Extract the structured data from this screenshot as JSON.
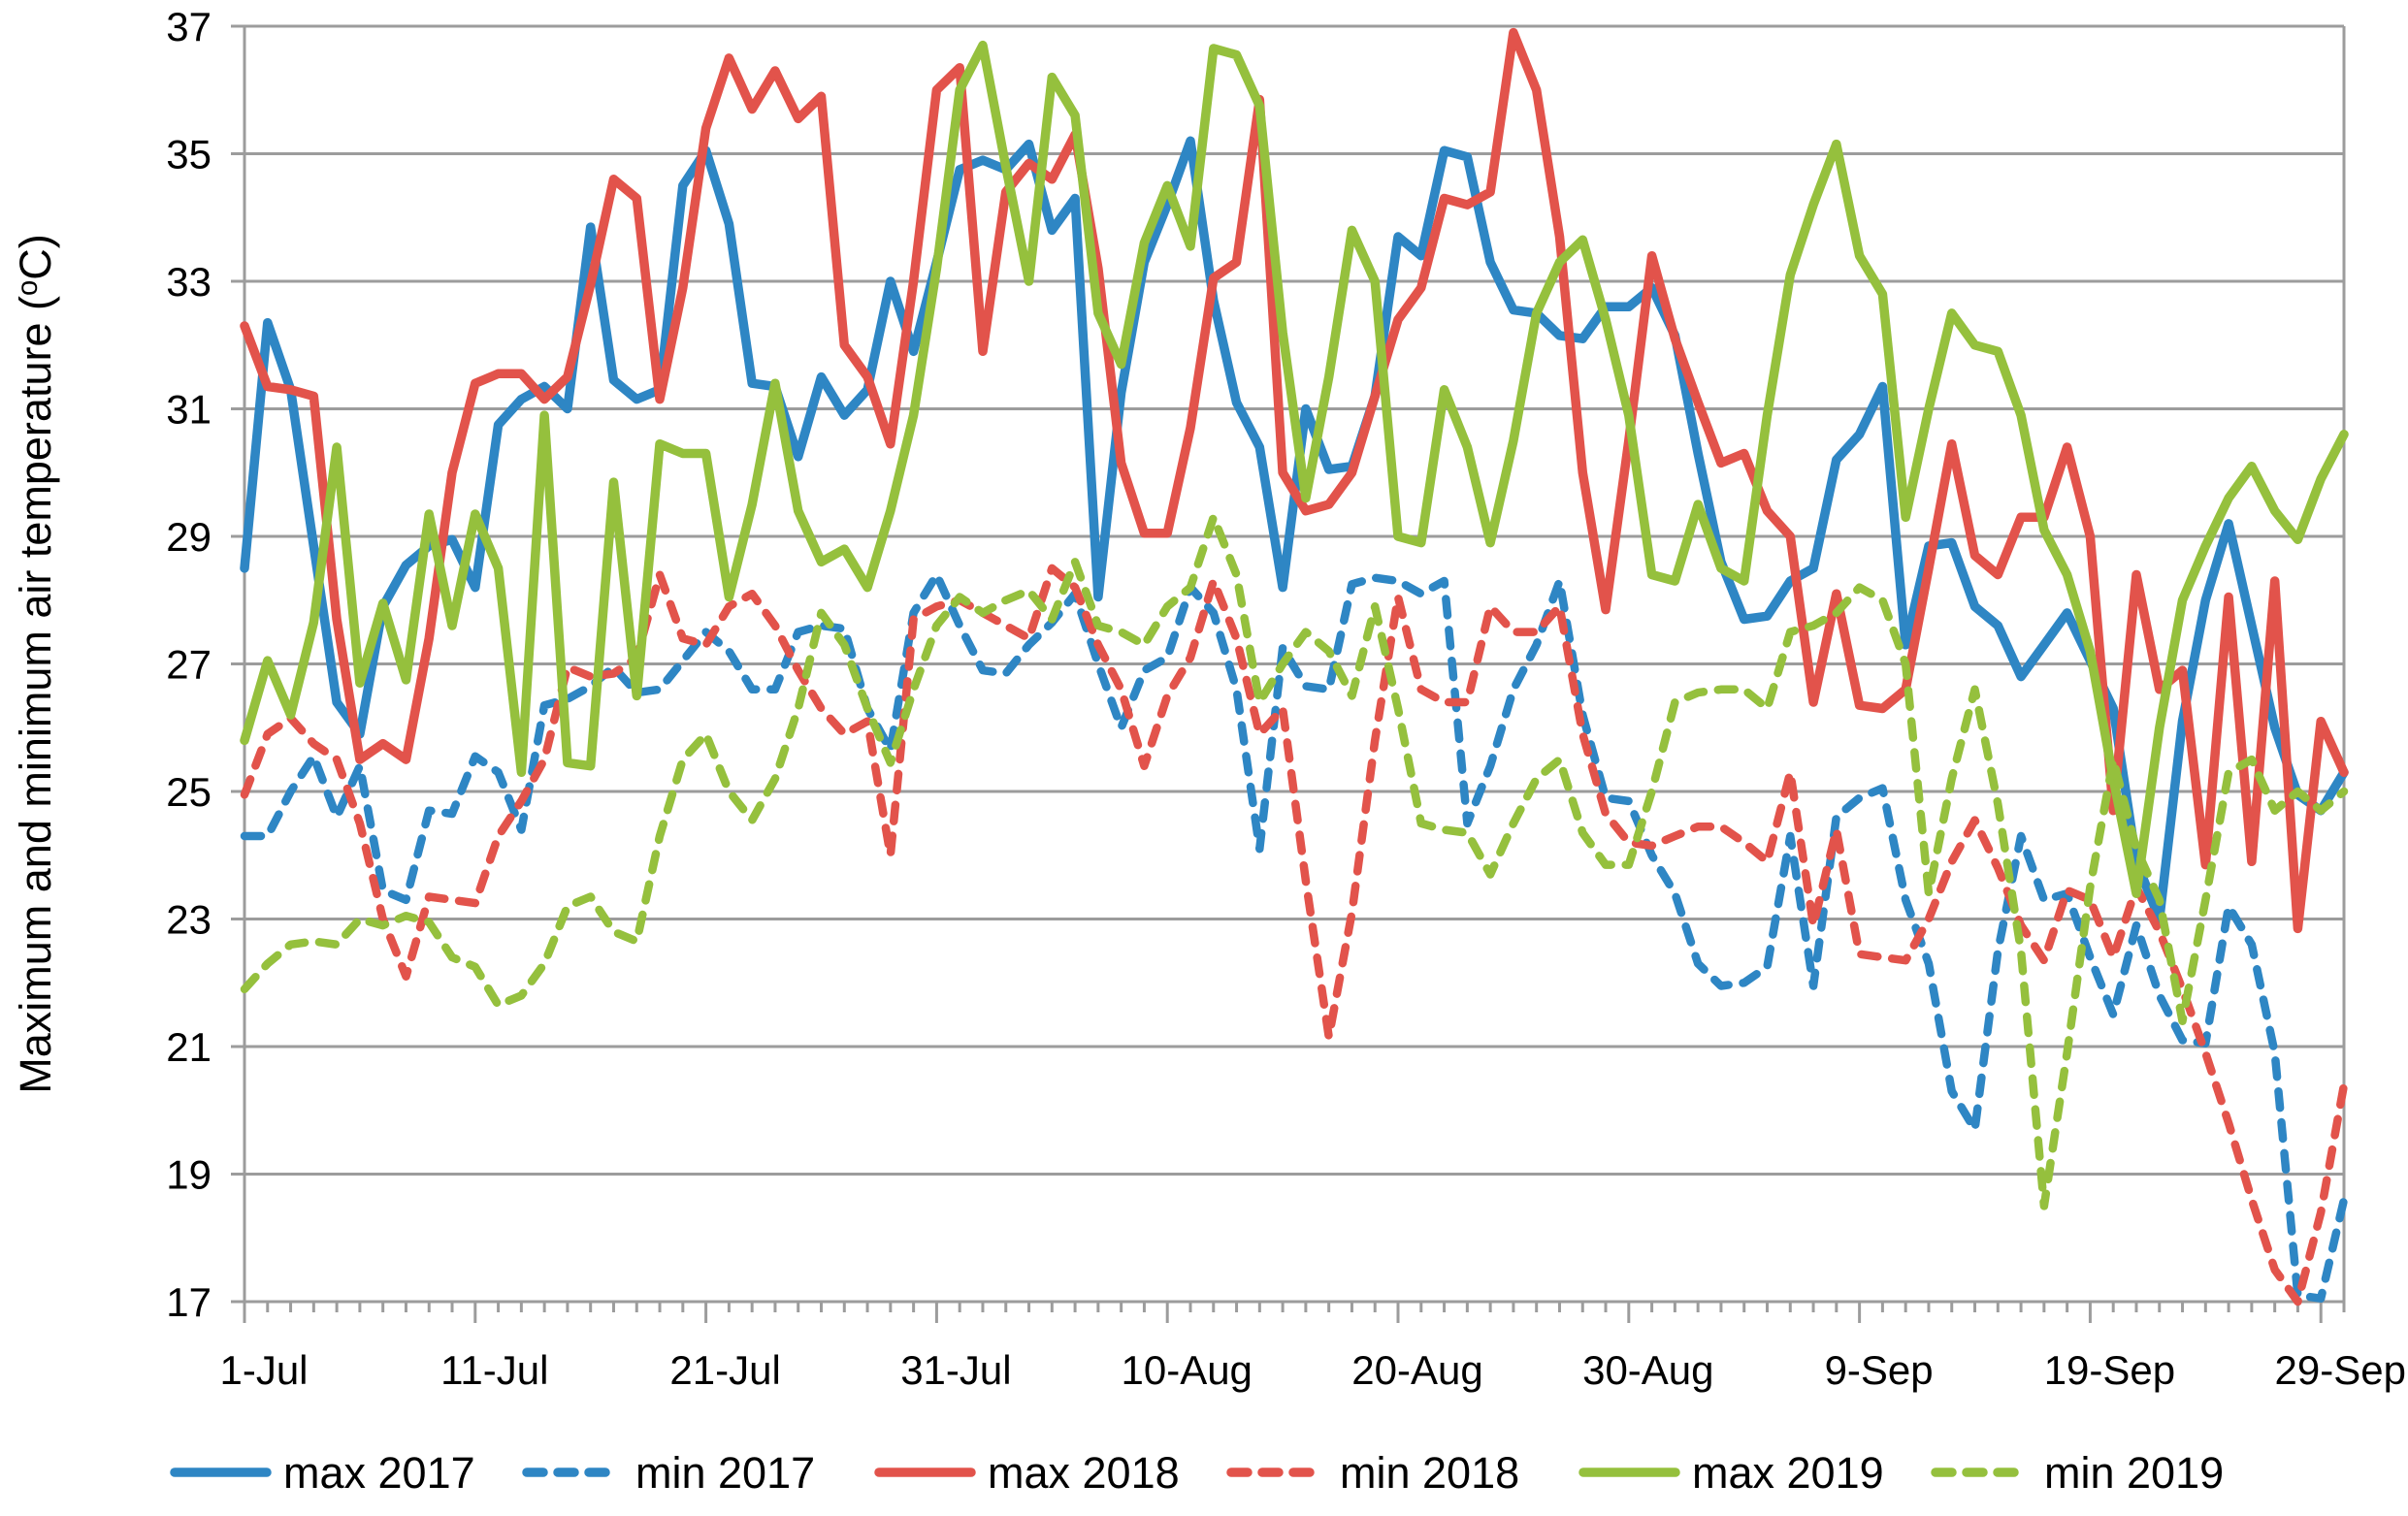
{
  "chart_data": {
    "type": "line",
    "title": "",
    "xlabel": "",
    "ylabel": "Maximum and minimum air temperature (°C)",
    "ylabel_display": {
      "prefix": "Maximum and minimum air temperature (",
      "degree_symbol": "o",
      "suffix": "C)"
    },
    "ylim": [
      17,
      37
    ],
    "y_tick_step": 2,
    "y_tick_labels": [
      "17",
      "19",
      "21",
      "23",
      "25",
      "27",
      "29",
      "31",
      "33",
      "35",
      "37"
    ],
    "x_tick_labels": [
      "1-Jul",
      "11-Jul",
      "21-Jul",
      "31-Jul",
      "10-Aug",
      "20-Aug",
      "30-Aug",
      "9-Sep",
      "19-Sep",
      "29-Sep"
    ],
    "x_tick_days": [
      0,
      10,
      20,
      30,
      40,
      50,
      60,
      70,
      80,
      90
    ],
    "num_days": 92,
    "grid": true,
    "legend_position": "bottom",
    "grid_color": "#9c9c9c",
    "background_color": "#ffffff",
    "series": [
      {
        "name": "max 2017",
        "color": "#2e86c4",
        "dashed": false,
        "values": [
          28.5,
          32.35,
          31.3,
          28.85,
          26.4,
          25.9,
          27.9,
          28.55,
          28.85,
          28.95,
          28.2,
          30.75,
          31.15,
          31.35,
          31.0,
          33.85,
          31.45,
          31.15,
          31.3,
          34.5,
          35.05,
          33.9,
          31.4,
          31.35,
          30.25,
          31.5,
          30.9,
          31.3,
          33.0,
          31.9,
          33.3,
          34.75,
          34.9,
          34.75,
          35.15,
          33.8,
          34.3,
          28.05,
          31.25,
          33.3,
          34.2,
          35.2,
          32.7,
          31.1,
          30.4,
          28.2,
          31.0,
          30.05,
          30.1,
          31.2,
          33.7,
          33.4,
          35.05,
          34.95,
          33.3,
          32.55,
          32.5,
          32.15,
          32.1,
          32.6,
          32.6,
          32.9,
          32.15,
          30.3,
          28.6,
          27.7,
          27.75,
          28.3,
          28.5,
          30.2,
          30.6,
          31.35,
          27.3,
          28.85,
          28.9,
          27.9,
          27.6,
          26.8,
          27.3,
          27.8,
          27.05,
          26.3,
          23.9,
          23.0,
          26.1,
          28.0,
          29.2,
          27.6,
          26.0,
          24.95,
          24.7,
          25.3
        ]
      },
      {
        "name": "min 2017",
        "color": "#2e86c4",
        "dashed": true,
        "values": [
          24.3,
          24.3,
          25.0,
          25.55,
          24.6,
          25.4,
          23.45,
          23.3,
          24.7,
          24.65,
          25.55,
          25.3,
          24.4,
          26.35,
          26.45,
          26.65,
          26.95,
          26.55,
          26.6,
          27.05,
          27.5,
          27.2,
          26.6,
          26.6,
          27.5,
          27.6,
          27.55,
          26.3,
          25.65,
          27.8,
          28.4,
          27.6,
          26.9,
          26.85,
          27.3,
          27.65,
          28.1,
          27.0,
          26.0,
          26.9,
          27.1,
          28.2,
          27.8,
          26.6,
          24.1,
          27.25,
          26.65,
          26.6,
          28.25,
          28.35,
          28.3,
          28.1,
          28.3,
          24.5,
          25.4,
          26.6,
          27.3,
          28.3,
          26.2,
          24.9,
          24.85,
          24.0,
          23.4,
          22.3,
          21.95,
          22.0,
          22.25,
          24.3,
          21.95,
          24.6,
          24.9,
          25.05,
          23.3,
          22.3,
          20.3,
          19.7,
          22.5,
          24.3,
          23.3,
          23.4,
          22.4,
          21.5,
          22.9,
          21.8,
          21.1,
          21.05,
          23.2,
          22.6,
          20.9,
          17.1,
          17.05,
          18.6
        ]
      },
      {
        "name": "max 2018",
        "color": "#e2534b",
        "dashed": false,
        "values": [
          32.3,
          31.35,
          31.3,
          31.2,
          27.7,
          25.5,
          25.75,
          25.5,
          27.4,
          30.0,
          31.4,
          31.55,
          31.55,
          31.15,
          31.5,
          32.95,
          34.6,
          34.3,
          31.15,
          32.9,
          35.4,
          36.5,
          35.7,
          36.3,
          35.55,
          35.9,
          32.0,
          31.5,
          30.45,
          33.0,
          36.0,
          36.35,
          31.9,
          34.4,
          34.85,
          34.6,
          35.3,
          33.2,
          30.15,
          29.05,
          29.05,
          30.7,
          33.05,
          33.3,
          35.85,
          30.0,
          29.4,
          29.5,
          30.0,
          31.2,
          32.4,
          32.9,
          34.3,
          34.2,
          34.4,
          36.9,
          36.0,
          33.7,
          30.0,
          27.85,
          30.5,
          33.4,
          32.1,
          31.1,
          30.15,
          30.3,
          29.4,
          29.0,
          26.4,
          28.1,
          26.35,
          26.3,
          26.6,
          28.5,
          30.45,
          28.7,
          28.4,
          29.3,
          29.3,
          30.4,
          29.0,
          24.7,
          28.4,
          26.6,
          26.9,
          23.85,
          28.05,
          23.9,
          28.3,
          22.85,
          26.1,
          25.3
        ]
      },
      {
        "name": "min 2018",
        "color": "#e2534b",
        "dashed": true,
        "values": [
          24.95,
          25.9,
          26.15,
          25.75,
          25.5,
          24.5,
          23.0,
          22.1,
          23.35,
          23.3,
          23.25,
          24.3,
          24.85,
          25.5,
          26.95,
          26.8,
          26.85,
          27.1,
          28.4,
          27.4,
          27.3,
          27.9,
          28.1,
          27.6,
          26.9,
          26.3,
          25.9,
          26.1,
          24.0,
          27.7,
          27.9,
          28.0,
          27.8,
          27.6,
          27.4,
          28.5,
          28.2,
          27.3,
          26.6,
          25.4,
          26.5,
          27.1,
          28.3,
          27.4,
          25.9,
          26.3,
          23.6,
          21.15,
          23.1,
          25.8,
          28.05,
          26.6,
          26.4,
          26.4,
          27.9,
          27.5,
          27.5,
          27.9,
          25.9,
          24.65,
          24.2,
          24.15,
          24.3,
          24.45,
          24.45,
          24.2,
          23.9,
          25.3,
          22.9,
          24.4,
          22.45,
          22.4,
          22.35,
          23.0,
          23.9,
          24.55,
          23.8,
          22.9,
          22.35,
          23.45,
          23.3,
          22.4,
          23.5,
          22.8,
          21.9,
          20.9,
          19.8,
          18.6,
          17.5,
          17.0,
          18.4,
          20.4
        ]
      },
      {
        "name": "max 2019",
        "color": "#95c03d",
        "dashed": false,
        "values": [
          25.8,
          27.05,
          26.2,
          27.65,
          30.4,
          26.7,
          27.95,
          26.75,
          29.35,
          27.6,
          29.35,
          28.5,
          25.3,
          30.9,
          25.45,
          25.4,
          29.85,
          26.5,
          30.45,
          30.3,
          30.3,
          28.05,
          29.5,
          31.4,
          29.4,
          28.6,
          28.8,
          28.2,
          29.4,
          30.9,
          33.2,
          36.0,
          36.7,
          34.8,
          33.0,
          36.2,
          35.6,
          32.5,
          31.7,
          33.6,
          34.5,
          33.55,
          36.65,
          36.55,
          35.75,
          32.2,
          29.6,
          31.5,
          33.8,
          33.0,
          29.0,
          28.9,
          31.3,
          30.4,
          28.9,
          30.5,
          32.5,
          33.3,
          33.65,
          32.4,
          30.9,
          28.4,
          28.3,
          29.5,
          28.5,
          28.3,
          30.9,
          33.1,
          34.2,
          35.15,
          33.4,
          32.8,
          29.3,
          31.0,
          32.5,
          32.0,
          31.9,
          30.9,
          29.1,
          28.4,
          27.2,
          25.2,
          23.4,
          26.0,
          28.0,
          28.85,
          29.6,
          30.1,
          29.4,
          28.95,
          29.9,
          30.6
        ]
      },
      {
        "name": "min 2019",
        "color": "#95c03d",
        "dashed": true,
        "values": [
          21.9,
          22.3,
          22.6,
          22.65,
          22.6,
          23.0,
          22.9,
          23.05,
          22.95,
          22.4,
          22.25,
          21.65,
          21.8,
          22.3,
          23.2,
          23.35,
          22.8,
          22.65,
          24.3,
          25.5,
          25.9,
          25.0,
          24.55,
          25.2,
          26.3,
          27.8,
          27.3,
          26.3,
          25.45,
          26.6,
          27.6,
          28.05,
          27.8,
          28.0,
          28.15,
          27.7,
          28.6,
          27.6,
          27.5,
          27.3,
          27.9,
          28.2,
          29.3,
          28.4,
          26.4,
          27.0,
          27.5,
          27.2,
          26.5,
          27.9,
          26.3,
          24.5,
          24.4,
          24.35,
          23.7,
          24.5,
          25.2,
          25.5,
          24.35,
          23.85,
          23.85,
          25.0,
          26.4,
          26.55,
          26.6,
          26.6,
          26.3,
          27.5,
          27.6,
          27.8,
          28.2,
          28.0,
          27.0,
          23.4,
          25.2,
          26.6,
          24.8,
          22.5,
          18.5,
          20.9,
          23.5,
          25.5,
          24.1,
          23.3,
          21.4,
          23.3,
          25.3,
          25.5,
          24.7,
          25.0,
          24.7,
          25.0
        ]
      }
    ]
  }
}
